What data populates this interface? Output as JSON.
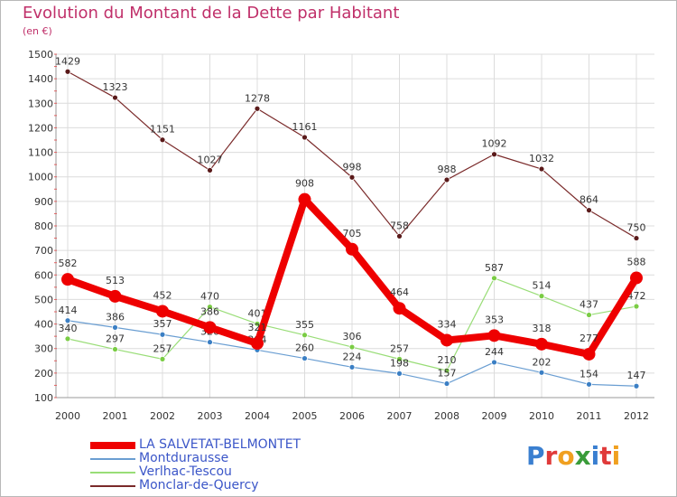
{
  "header": {
    "title": "Evolution du Montant de la Dette par Habitant",
    "subtitle": "(en €)"
  },
  "logo": {
    "text": "Proxiti",
    "colors": [
      "#3a7fd0",
      "#e03a3a",
      "#f0a020",
      "#3a9c3a",
      "#3a7fd0",
      "#e03a3a",
      "#f0a020"
    ]
  },
  "chart_data": {
    "type": "line",
    "title": "Evolution du Montant de la Dette par Habitant",
    "subtitle": "(en €)",
    "xlabel": "",
    "ylabel": "",
    "ylim": [
      100,
      1500
    ],
    "yticks": [
      100,
      200,
      300,
      400,
      500,
      600,
      700,
      800,
      900,
      1000,
      1100,
      1200,
      1300,
      1400,
      1500
    ],
    "grid": true,
    "legend": "bottom-left",
    "x": [
      "2000",
      "2001",
      "2002",
      "2003",
      "2004",
      "2005",
      "2006",
      "2007",
      "2008",
      "2009",
      "2010",
      "2011",
      "2012"
    ],
    "series": [
      {
        "name": "Monclar-de-Quercy",
        "color": "#7a2a2a",
        "point_color": "#5a1a1a",
        "width": 1.2,
        "radius": 3,
        "values": [
          1429,
          1323,
          1151,
          1027,
          1278,
          1161,
          998,
          758,
          988,
          1092,
          1032,
          864,
          750
        ],
        "labels": [
          "1429",
          "1323",
          "1151",
          "1027",
          "1278",
          "1161",
          "998",
          "758",
          "988",
          "1092",
          "1032",
          "864",
          "750"
        ],
        "label_pos": "above"
      },
      {
        "name": "Verlhac-Tescou",
        "color": "#99dd77",
        "point_color": "#7acc44",
        "width": 1.2,
        "radius": 3,
        "values": [
          340,
          297,
          257,
          470,
          401,
          355,
          306,
          257,
          210,
          587,
          514,
          437,
          472
        ],
        "labels": [
          "340",
          "297",
          "257",
          "470",
          "401",
          "355",
          "306",
          "257",
          "210",
          "587",
          "514",
          "437",
          "472"
        ],
        "label_pos": "above"
      },
      {
        "name": "Montdurausse",
        "color": "#6a9ed2",
        "point_color": "#3b7fc4",
        "width": 1.2,
        "radius": 3,
        "values": [
          414,
          386,
          357,
          326,
          294,
          260,
          224,
          198,
          157,
          244,
          202,
          154,
          147
        ],
        "labels": [
          "414",
          "386",
          "357",
          "326",
          "294",
          "260",
          "224",
          "198",
          "157",
          "244",
          "202",
          "154",
          "147"
        ],
        "label_pos": "above"
      },
      {
        "name": "LA SALVETAT-BELMONTET",
        "color": "#ee0000",
        "point_color": "#ee0000",
        "width": 8,
        "radius": 7,
        "values": [
          582,
          513,
          452,
          386,
          321,
          908,
          705,
          464,
          334,
          353,
          318,
          277,
          588
        ],
        "labels": [
          "582",
          "513",
          "452",
          "386",
          "321",
          "908",
          "705",
          "464",
          "334",
          "353",
          "318",
          "277",
          "588"
        ],
        "label_pos": "above"
      }
    ],
    "legend_entries": [
      {
        "name": "LA SALVETAT-BELMONTET",
        "color": "#ee0000",
        "thick": true
      },
      {
        "name": "Montdurausse",
        "color": "#6a9ed2",
        "thick": false
      },
      {
        "name": "Verlhac-Tescou",
        "color": "#99dd77",
        "thick": false
      },
      {
        "name": "Monclar-de-Quercy",
        "color": "#7a2a2a",
        "thick": false
      }
    ]
  }
}
